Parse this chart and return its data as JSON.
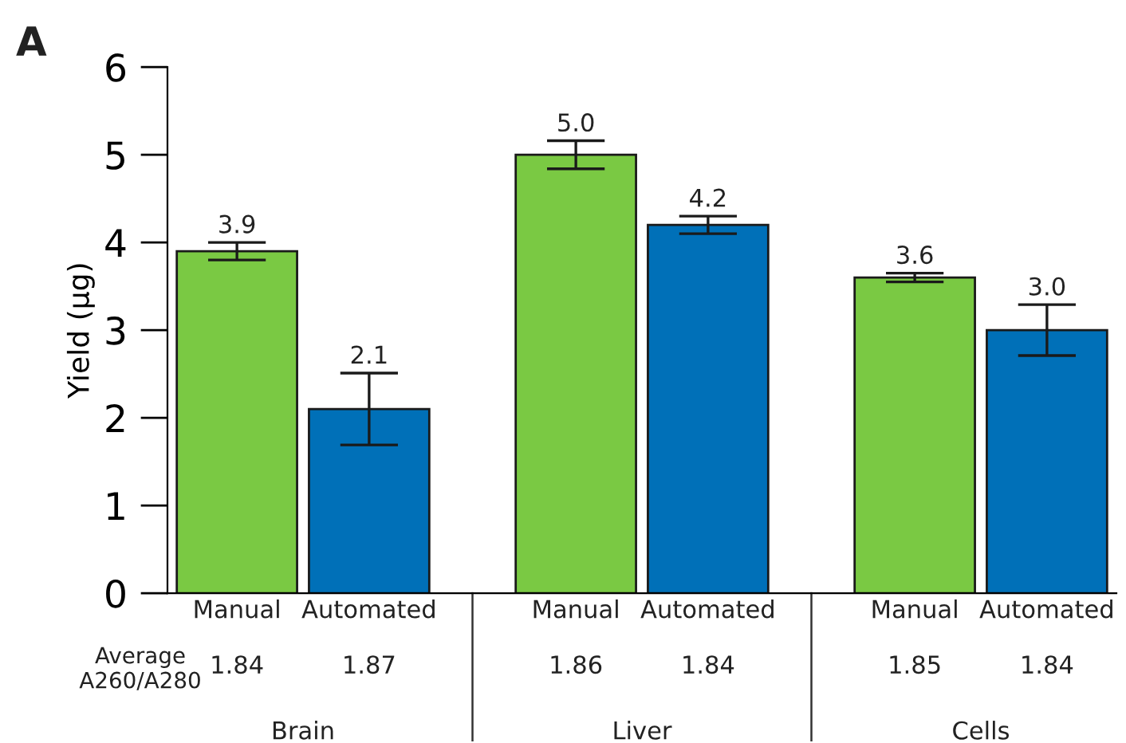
{
  "chart_data": {
    "type": "bar",
    "ylabel": "Yield (µg)",
    "categories": [
      "Brain",
      "Liver",
      "Cells"
    ],
    "series": [
      {
        "name": "Manual",
        "color": "#7ac943",
        "values": [
          3.9,
          5.0,
          3.6
        ],
        "errors": [
          0.1,
          0.16,
          0.05
        ],
        "value_labels": [
          "3.9",
          "5.0",
          "3.6"
        ]
      },
      {
        "name": "Automated",
        "color": "#0070b8",
        "values": [
          2.1,
          4.2,
          3.0
        ],
        "errors": [
          0.41,
          0.1,
          0.29
        ],
        "value_labels": [
          "2.1",
          "4.2",
          "3.0"
        ]
      }
    ],
    "ylim": [
      0,
      6
    ],
    "yticks": [
      0,
      1,
      2,
      3,
      4,
      5,
      6
    ],
    "legend": false,
    "grid": false,
    "annotations": [
      "A",
      "Average\nA260/A280",
      "1.84",
      "1.87",
      "1.86",
      "1.84",
      "1.85",
      "1.84"
    ]
  }
}
